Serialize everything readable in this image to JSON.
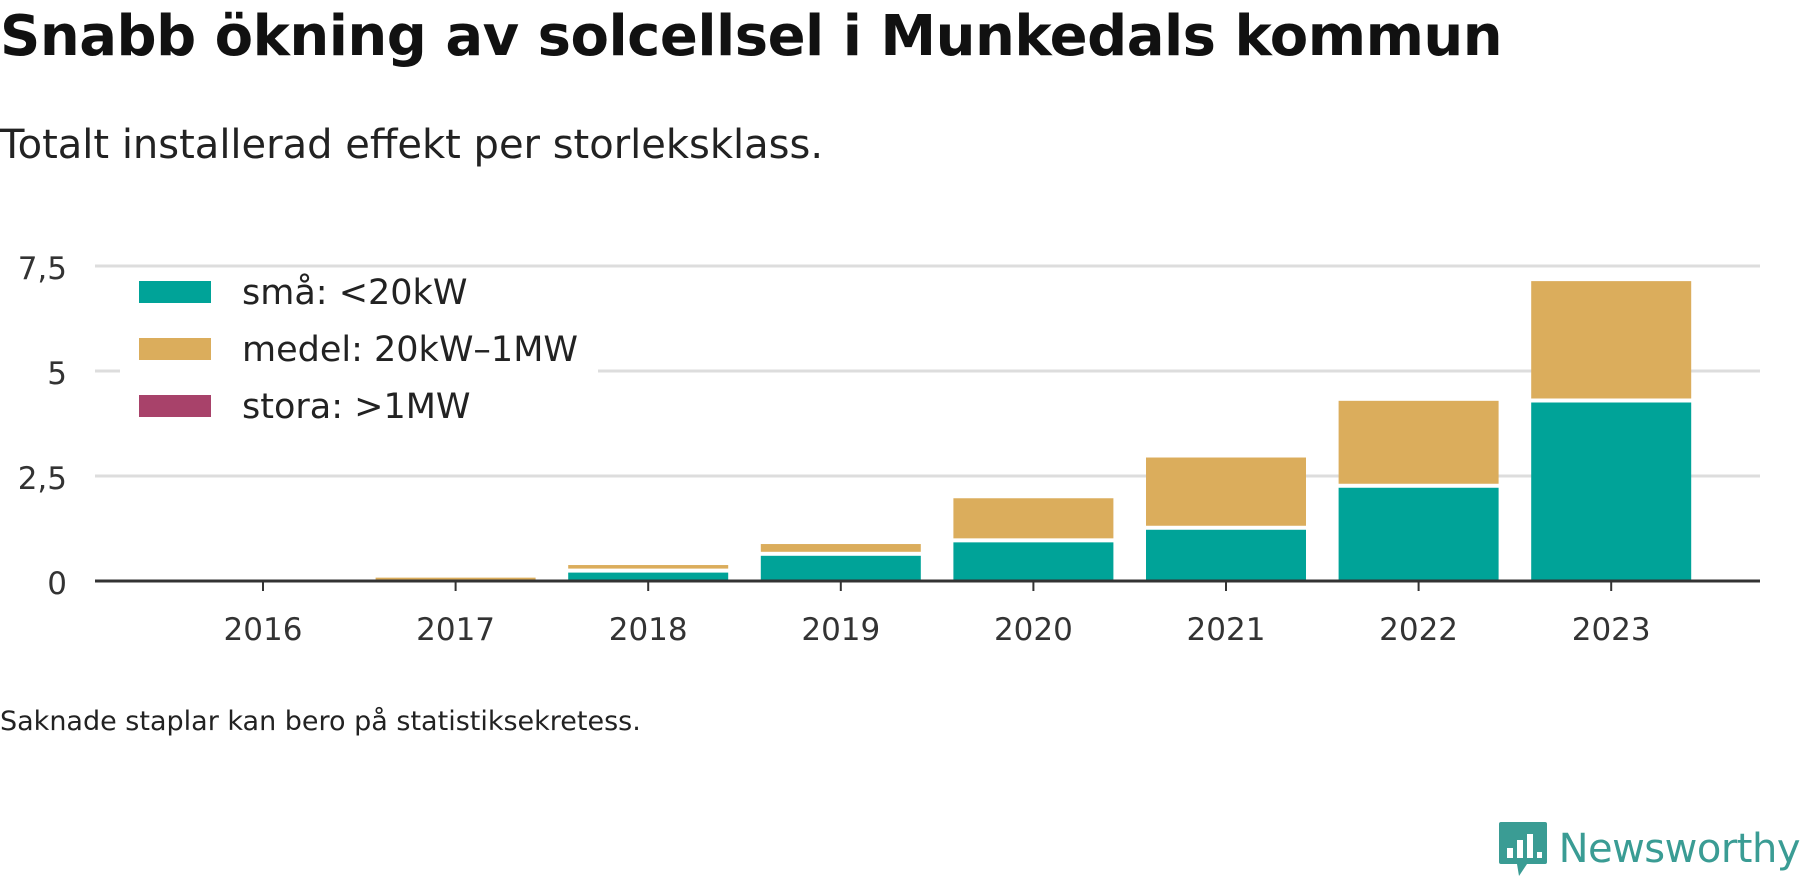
{
  "title": "Snabb ökning av solcellsel i Munkedals kommun",
  "subtitle": "Totalt installerad effekt per storleksklass.",
  "note": "Saknade staplar kan bero på statistiksekretess.",
  "brand": {
    "name": "Newsworthy",
    "logo_icon": "newsworthy-chart-bubble-icon",
    "color": "#3a9c94"
  },
  "chart_data": {
    "type": "bar",
    "stacked": true,
    "categories": [
      "2016",
      "2017",
      "2018",
      "2019",
      "2020",
      "2021",
      "2022",
      "2023"
    ],
    "series": [
      {
        "name": "små: <20kW",
        "color": "#00a398",
        "values": [
          0.0,
          0.03,
          0.2,
          0.6,
          0.92,
          1.22,
          2.22,
          4.25
        ]
      },
      {
        "name": "medel: 20kW–1MW",
        "color": "#dbad5c",
        "values": [
          0.0,
          0.05,
          0.18,
          0.28,
          1.05,
          1.72,
          2.07,
          2.89
        ]
      },
      {
        "name": "stora: >1MW",
        "color": "#a8426a",
        "values": [
          0,
          0,
          0,
          0,
          0,
          0,
          0,
          0
        ]
      }
    ],
    "ylim": [
      0,
      7.5
    ],
    "yticks": [
      0,
      2.5,
      5,
      7.5
    ],
    "ytick_labels": [
      "0",
      "2,5",
      "5",
      "7,5"
    ],
    "xlabel": "",
    "ylabel": "",
    "grid": true,
    "legend_position": "top-left"
  }
}
